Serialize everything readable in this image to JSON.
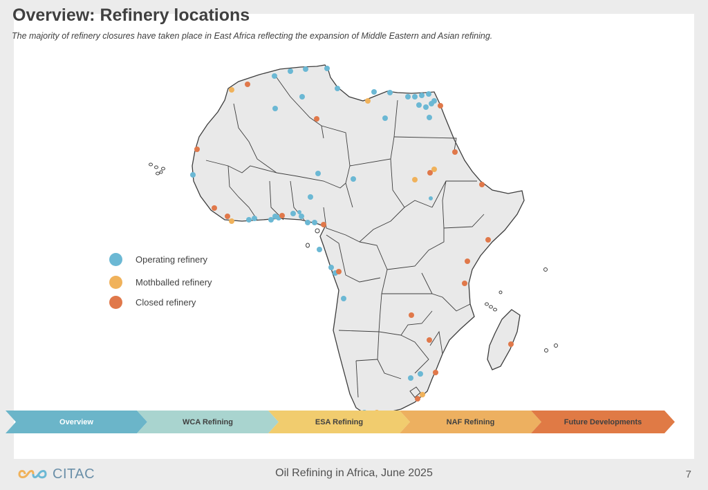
{
  "slide": {
    "title": "Overview: Refinery locations",
    "subtitle": "The majority of refinery closures have taken place in East Africa reflecting the expansion of Middle Eastern and Asian refining."
  },
  "legend": [
    {
      "label": "Operating refinery",
      "color": "#6bb8d4"
    },
    {
      "label": "Mothballed refinery",
      "color": "#f0b25b"
    },
    {
      "label": "Closed refinery",
      "color": "#e0784a"
    }
  ],
  "nav": [
    {
      "label": "Overview",
      "bg": "#6bb5c9",
      "fg": "#ffffff"
    },
    {
      "label": "WCA Refining",
      "bg": "#a9d4cf",
      "fg": "#404040"
    },
    {
      "label": "ESA Refining",
      "bg": "#f1cc6e",
      "fg": "#404040"
    },
    {
      "label": "NAF Refining",
      "bg": "#edb060",
      "fg": "#404040"
    },
    {
      "label": "Future Developments",
      "bg": "#e07a45",
      "fg": "#404040"
    }
  ],
  "footer": {
    "brand": "CITAC",
    "center_text": "Oil Refining in Africa, June 2025",
    "page_number": "7"
  }
}
